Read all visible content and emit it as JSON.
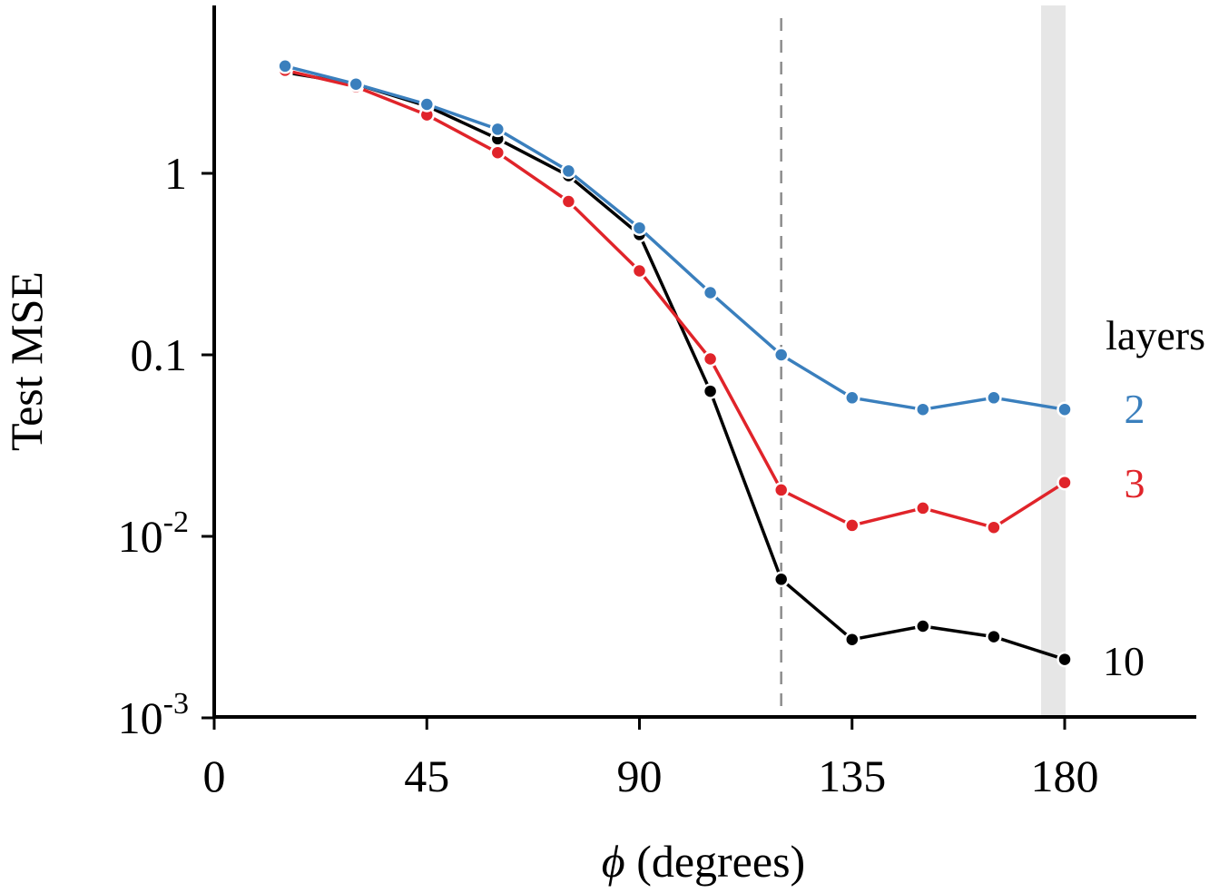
{
  "chart_data": {
    "type": "line",
    "xlabel": "(degrees)",
    "xlabel_symbol": "ϕ",
    "ylabel": "Test MSE",
    "y_scale": "log",
    "xlim": [
      0,
      200
    ],
    "ylim": [
      0.001,
      10
    ],
    "x_ticks": [
      0,
      45,
      90,
      135,
      180
    ],
    "x_tick_labels": [
      "0",
      "45",
      "90",
      "135",
      "180"
    ],
    "y_ticks": [
      {
        "value": 1,
        "label": "1",
        "exp": ""
      },
      {
        "value": 0.1,
        "label": "0.1",
        "exp": ""
      },
      {
        "value": 0.01,
        "label": "10",
        "exp": "-2"
      },
      {
        "value": 0.001,
        "label": "10",
        "exp": "-3"
      }
    ],
    "vertical_line": {
      "x": 120,
      "style": "dashed",
      "color": "#8c8c8c"
    },
    "shaded_region": {
      "x0": 175,
      "x1": 180,
      "color": "#e6e6e6"
    },
    "legend_title": "layers",
    "series": [
      {
        "name": "2",
        "color": "#3a7fbd",
        "x": [
          15,
          30,
          45,
          60,
          75,
          90,
          105,
          120,
          135,
          150,
          165,
          180
        ],
        "values": [
          3.9,
          3.1,
          2.4,
          1.75,
          1.03,
          0.5,
          0.22,
          0.1,
          0.058,
          0.05,
          0.058,
          0.05
        ]
      },
      {
        "name": "3",
        "color": "#e0242a",
        "x": [
          15,
          30,
          45,
          60,
          75,
          90,
          105,
          120,
          135,
          150,
          165,
          180
        ],
        "values": [
          3.7,
          3.0,
          2.1,
          1.3,
          0.7,
          0.29,
          0.095,
          0.018,
          0.0115,
          0.0143,
          0.0112,
          0.0198
        ]
      },
      {
        "name": "10",
        "color": "#000000",
        "x": [
          15,
          30,
          45,
          60,
          75,
          90,
          105,
          120,
          135,
          150,
          165,
          180
        ],
        "values": [
          3.6,
          3.1,
          2.35,
          1.55,
          0.97,
          0.46,
          0.063,
          0.0058,
          0.0027,
          0.0032,
          0.0028,
          0.0021
        ]
      }
    ]
  }
}
